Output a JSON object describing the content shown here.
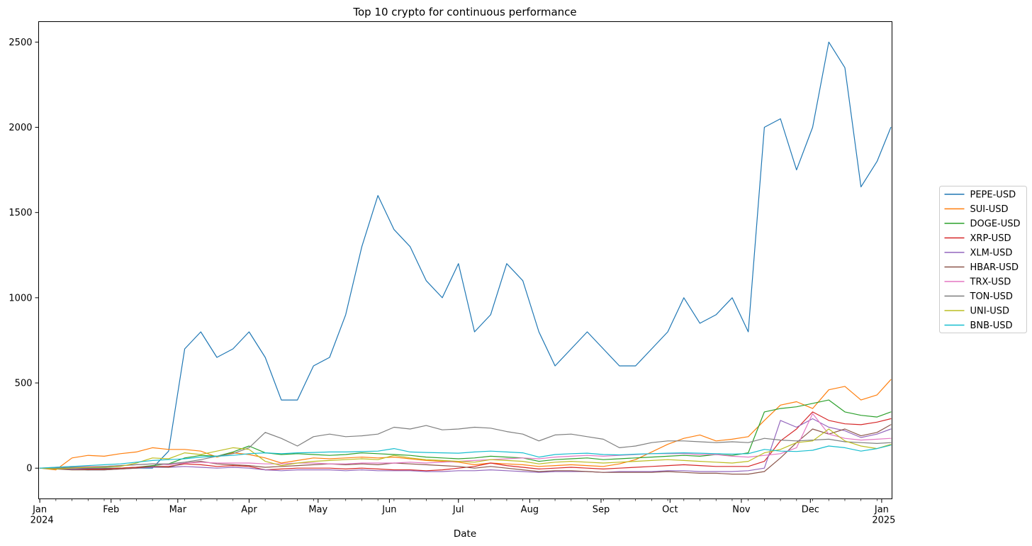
{
  "chart_data": {
    "type": "line",
    "title": "Top 10 crypto for continuous performance",
    "xlabel": "Date",
    "ylabel": "",
    "grid": false,
    "legend_position": "outside-right",
    "ylim": [
      -180,
      2620
    ],
    "yticks": [
      0,
      500,
      1000,
      1500,
      2000,
      2500
    ],
    "xlim_days": [
      -0.5,
      370.5
    ],
    "x_minor_tick_every_days": 7,
    "month_ticks": [
      {
        "day": 0,
        "label": "Jan",
        "year": "2024"
      },
      {
        "day": 31,
        "label": "Feb"
      },
      {
        "day": 60,
        "label": "Mar"
      },
      {
        "day": 91,
        "label": "Apr"
      },
      {
        "day": 121,
        "label": "May"
      },
      {
        "day": 152,
        "label": "Jun"
      },
      {
        "day": 182,
        "label": "Jul"
      },
      {
        "day": 213,
        "label": "Aug"
      },
      {
        "day": 244,
        "label": "Sep"
      },
      {
        "day": 274,
        "label": "Oct"
      },
      {
        "day": 305,
        "label": "Nov"
      },
      {
        "day": 335,
        "label": "Dec"
      },
      {
        "day": 366,
        "label": "Jan",
        "year": "2025"
      }
    ],
    "x_days": [
      0,
      7,
      14,
      21,
      28,
      35,
      42,
      49,
      56,
      63,
      70,
      77,
      84,
      91,
      98,
      105,
      112,
      119,
      126,
      133,
      140,
      147,
      154,
      161,
      168,
      175,
      182,
      189,
      196,
      203,
      210,
      217,
      224,
      231,
      238,
      245,
      252,
      259,
      266,
      273,
      280,
      287,
      294,
      301,
      308,
      315,
      322,
      329,
      336,
      343,
      350,
      357,
      364,
      370
    ],
    "series": [
      {
        "name": "PEPE-USD",
        "color": "#1f77b4",
        "values": [
          0,
          0,
          0,
          0,
          0,
          0,
          0,
          0,
          100,
          700,
          800,
          650,
          700,
          800,
          650,
          400,
          400,
          600,
          650,
          900,
          1300,
          1600,
          1400,
          1300,
          1100,
          1000,
          1200,
          800,
          900,
          1200,
          1100,
          800,
          600,
          700,
          800,
          700,
          600,
          600,
          700,
          800,
          1000,
          850,
          900,
          1000,
          800,
          2000,
          2050,
          1750,
          2000,
          2500,
          2350,
          1650,
          1800,
          2000
        ]
      },
      {
        "name": "SUI-USD",
        "color": "#ff7f0e",
        "values": [
          0,
          -10,
          60,
          75,
          70,
          85,
          95,
          120,
          110,
          110,
          100,
          65,
          90,
          80,
          60,
          30,
          45,
          60,
          55,
          60,
          65,
          60,
          65,
          55,
          45,
          40,
          35,
          20,
          30,
          25,
          20,
          10,
          15,
          20,
          15,
          10,
          25,
          50,
          95,
          140,
          175,
          195,
          160,
          170,
          185,
          280,
          370,
          390,
          350,
          460,
          480,
          400,
          430,
          520
        ]
      },
      {
        "name": "DOGE-USD",
        "color": "#2ca02c",
        "values": [
          0,
          -5,
          -5,
          -10,
          -5,
          0,
          5,
          15,
          25,
          60,
          75,
          70,
          95,
          130,
          90,
          80,
          85,
          80,
          75,
          80,
          90,
          85,
          80,
          75,
          65,
          60,
          55,
          60,
          70,
          65,
          60,
          40,
          50,
          55,
          60,
          50,
          55,
          60,
          65,
          70,
          75,
          70,
          80,
          75,
          90,
          330,
          350,
          360,
          380,
          400,
          330,
          310,
          300,
          330
        ]
      },
      {
        "name": "XRP-USD",
        "color": "#d62728",
        "values": [
          0,
          0,
          -5,
          -5,
          -5,
          0,
          5,
          10,
          10,
          25,
          20,
          10,
          15,
          10,
          -10,
          -5,
          0,
          0,
          0,
          -5,
          0,
          -5,
          -10,
          -10,
          -15,
          -10,
          0,
          10,
          30,
          15,
          5,
          -5,
          0,
          5,
          0,
          -5,
          0,
          5,
          10,
          15,
          20,
          15,
          10,
          10,
          10,
          40,
          160,
          230,
          330,
          280,
          260,
          255,
          270,
          290
        ]
      },
      {
        "name": "XLM-USD",
        "color": "#9467bd",
        "values": [
          0,
          -5,
          -5,
          -10,
          -10,
          -5,
          0,
          5,
          5,
          10,
          5,
          0,
          5,
          0,
          -10,
          -15,
          -10,
          -10,
          -10,
          -15,
          -10,
          -15,
          -15,
          -15,
          -20,
          -20,
          -15,
          -15,
          -10,
          -15,
          -20,
          -25,
          -20,
          -20,
          -20,
          -25,
          -20,
          -20,
          -20,
          -15,
          -15,
          -20,
          -20,
          -20,
          -15,
          0,
          280,
          240,
          290,
          240,
          220,
          180,
          200,
          230
        ]
      },
      {
        "name": "HBAR-USD",
        "color": "#8c564b",
        "values": [
          0,
          -5,
          -10,
          -10,
          -10,
          -5,
          0,
          10,
          5,
          30,
          40,
          25,
          20,
          15,
          5,
          10,
          15,
          20,
          25,
          20,
          25,
          20,
          30,
          25,
          20,
          15,
          10,
          0,
          10,
          0,
          -10,
          -20,
          -15,
          -15,
          -20,
          -25,
          -25,
          -25,
          -25,
          -20,
          -25,
          -30,
          -30,
          -35,
          -35,
          -20,
          60,
          150,
          230,
          200,
          230,
          190,
          210,
          255
        ]
      },
      {
        "name": "TRX-USD",
        "color": "#e377c2",
        "values": [
          0,
          5,
          10,
          10,
          10,
          15,
          20,
          25,
          20,
          30,
          35,
          30,
          30,
          30,
          25,
          25,
          30,
          30,
          25,
          25,
          30,
          30,
          30,
          35,
          30,
          35,
          40,
          45,
          50,
          55,
          60,
          55,
          65,
          70,
          75,
          70,
          75,
          80,
          85,
          85,
          85,
          80,
          80,
          70,
          65,
          75,
          85,
          120,
          320,
          200,
          175,
          165,
          170,
          175
        ]
      },
      {
        "name": "TON-USD",
        "color": "#7f7f7f",
        "values": [
          0,
          0,
          5,
          5,
          10,
          15,
          20,
          25,
          25,
          35,
          50,
          70,
          85,
          120,
          210,
          175,
          130,
          185,
          200,
          185,
          190,
          200,
          240,
          230,
          250,
          225,
          230,
          240,
          235,
          215,
          200,
          160,
          195,
          200,
          185,
          170,
          120,
          130,
          150,
          160,
          160,
          155,
          150,
          155,
          150,
          175,
          165,
          160,
          165,
          170,
          155,
          150,
          145,
          150
        ]
      },
      {
        "name": "UNI-USD",
        "color": "#bcbd22",
        "values": [
          0,
          -5,
          0,
          5,
          5,
          10,
          30,
          60,
          55,
          90,
          80,
          100,
          120,
          110,
          40,
          15,
          30,
          40,
          45,
          50,
          55,
          50,
          75,
          60,
          50,
          45,
          40,
          35,
          50,
          45,
          40,
          25,
          35,
          40,
          35,
          30,
          35,
          40,
          45,
          50,
          45,
          40,
          35,
          30,
          40,
          90,
          110,
          150,
          160,
          230,
          160,
          130,
          115,
          140
        ]
      },
      {
        "name": "BNB-USD",
        "color": "#17becf",
        "values": [
          0,
          5,
          10,
          15,
          20,
          25,
          35,
          45,
          50,
          55,
          65,
          70,
          75,
          85,
          90,
          85,
          90,
          92,
          95,
          95,
          98,
          100,
          115,
          95,
          92,
          90,
          88,
          95,
          100,
          95,
          90,
          65,
          80,
          85,
          88,
          80,
          78,
          82,
          85,
          88,
          90,
          88,
          85,
          83,
          85,
          110,
          100,
          98,
          105,
          130,
          120,
          100,
          115,
          135
        ]
      }
    ],
    "legend_entries": [
      "PEPE-USD",
      "SUI-USD",
      "DOGE-USD",
      "XRP-USD",
      "XLM-USD",
      "HBAR-USD",
      "TRX-USD",
      "TON-USD",
      "UNI-USD",
      "BNB-USD"
    ]
  }
}
